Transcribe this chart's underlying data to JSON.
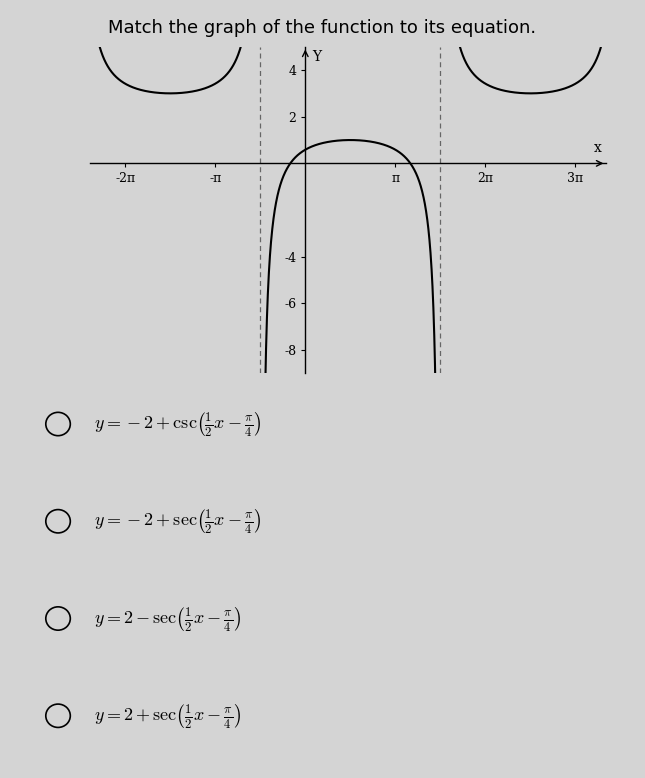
{
  "title": "Match the graph of the function to its equation.",
  "x_min": -7.5,
  "x_max": 10.5,
  "y_min": -9,
  "y_max": 5,
  "x_ticks": [
    -6.283185307,
    -3.141592654,
    3.141592654,
    6.283185307,
    9.424777961
  ],
  "x_tick_labels": [
    "-2π",
    "-π",
    "π",
    "2π",
    "3π"
  ],
  "y_ticks": [
    -8,
    -6,
    -4,
    2,
    4
  ],
  "y_tick_labels": [
    "-8",
    "-6",
    "-4",
    "2",
    "4"
  ],
  "bg_color": "#d4d4d4",
  "curve_color": "#000000",
  "asym_color": "#666666",
  "choice_latex": [
    "y=-2+\\csc\\!\\left(\\frac{1}{2}x-\\frac{\\pi}{4}\\right)",
    "y=-2+\\sec\\!\\left(\\frac{1}{2}x-\\frac{\\pi}{4}\\right)",
    "y=2-\\sec\\!\\left(\\frac{1}{2}x-\\frac{\\pi}{4}\\right)",
    "y=2+\\sec\\!\\left(\\frac{1}{2}x-\\frac{\\pi}{4}\\right)"
  ]
}
